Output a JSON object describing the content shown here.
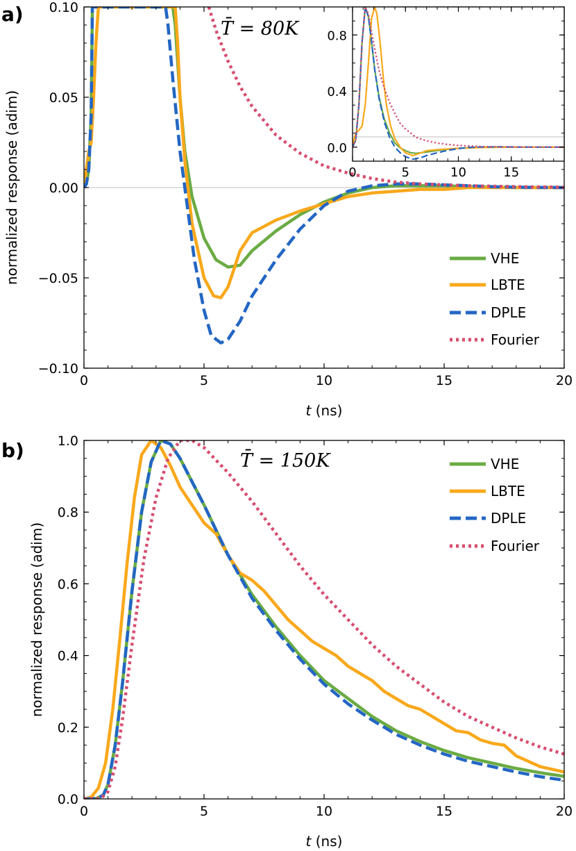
{
  "colors": {
    "VHE": "#6aab43",
    "LBTE": "#f9a81b",
    "DPLE": "#2366c4",
    "Fourier": "#d64d6f"
  },
  "chart_data": [
    {
      "panel": "a)",
      "type": "line",
      "annotation": "T̄ = 80K",
      "xlabel": "t (ns)",
      "ylabel": "normalized response (adim)",
      "xlim": [
        0,
        20
      ],
      "ylim": [
        -0.1,
        0.1
      ],
      "xticks": [
        "0",
        "5",
        "10",
        "15",
        "20"
      ],
      "yticks": [
        "−0.10",
        "−0.05",
        "0.00",
        "0.05",
        "0.10"
      ],
      "legend": [
        "VHE",
        "LBTE",
        "DPLE",
        "Fourier"
      ],
      "series": [
        {
          "name": "VHE",
          "x": [
            0,
            0.1,
            0.2,
            0.3,
            0.35,
            3.7,
            3.8,
            4,
            4.2,
            4.5,
            5,
            5.5,
            6,
            6.5,
            7,
            8,
            9,
            10,
            11,
            12,
            13,
            14,
            15,
            16,
            18,
            20
          ],
          "y": [
            0,
            0.002,
            0.01,
            0.04,
            0.1,
            0.1,
            0.09,
            0.05,
            0.02,
            -0.005,
            -0.028,
            -0.04,
            -0.044,
            -0.043,
            -0.035,
            -0.024,
            -0.015,
            -0.008,
            -0.003,
            0,
            0.001,
            0.001,
            0.001,
            0.0005,
            0,
            0
          ]
        },
        {
          "name": "LBTE",
          "x": [
            0,
            0.1,
            0.2,
            0.3,
            0.4,
            0.5,
            0.6,
            3.8,
            3.9,
            4,
            4.2,
            4.5,
            5,
            5.4,
            5.7,
            6,
            6.5,
            7,
            8,
            9,
            10,
            11,
            12,
            13,
            14,
            15,
            16,
            18,
            20
          ],
          "y": [
            0,
            0.01,
            0.02,
            0.025,
            0.05,
            0.08,
            0.1,
            0.1,
            0.08,
            0.05,
            0.015,
            -0.02,
            -0.05,
            -0.06,
            -0.061,
            -0.055,
            -0.035,
            -0.025,
            -0.018,
            -0.013,
            -0.009,
            -0.005,
            -0.003,
            -0.002,
            -0.001,
            -0.001,
            0,
            0,
            0
          ]
        },
        {
          "name": "DPLE",
          "x": [
            0,
            0.1,
            0.2,
            0.3,
            0.35,
            3.4,
            3.5,
            3.7,
            4,
            4.3,
            4.6,
            5,
            5.3,
            5.7,
            6,
            6.5,
            7,
            8,
            9,
            10,
            11,
            12,
            13,
            14,
            15,
            16,
            17,
            18,
            20
          ],
          "y": [
            0,
            0.002,
            0.01,
            0.04,
            0.1,
            0.1,
            0.09,
            0.06,
            0.02,
            -0.01,
            -0.04,
            -0.068,
            -0.082,
            -0.086,
            -0.084,
            -0.074,
            -0.06,
            -0.04,
            -0.023,
            -0.01,
            -0.002,
            0.001,
            0.002,
            0.002,
            0.0015,
            0.001,
            0.0005,
            0.0002,
            0
          ]
        },
        {
          "name": "Fourier",
          "x": [
            5.2,
            5.5,
            6,
            6.5,
            7,
            8,
            9,
            10,
            11,
            12,
            13,
            14,
            16,
            18,
            20
          ],
          "y": [
            0.1,
            0.087,
            0.07,
            0.056,
            0.045,
            0.029,
            0.019,
            0.012,
            0.008,
            0.005,
            0.003,
            0.002,
            0.001,
            0.0005,
            0.0002
          ]
        }
      ],
      "inset": {
        "xlim": [
          0,
          20
        ],
        "ylim": [
          -0.1,
          1.0
        ],
        "xticks": [
          "0",
          "5",
          "10",
          "15"
        ],
        "yticks": [
          "0.0",
          "0.4",
          "0.8"
        ],
        "series": [
          {
            "name": "VHE",
            "x": [
              0,
              0.3,
              0.6,
              0.9,
              1.2,
              1.5,
              1.8,
              2.1,
              2.5,
              3,
              3.5,
              4,
              4.5,
              5,
              5.5,
              6,
              7,
              8,
              9,
              10,
              12,
              14,
              16,
              18,
              20
            ],
            "y": [
              0,
              0.05,
              0.3,
              0.75,
              1.0,
              0.93,
              0.75,
              0.55,
              0.36,
              0.2,
              0.1,
              0.03,
              -0.005,
              -0.025,
              -0.04,
              -0.044,
              -0.035,
              -0.024,
              -0.015,
              -0.008,
              0,
              0.001,
              0,
              0,
              0
            ]
          },
          {
            "name": "LBTE",
            "x": [
              0,
              0.3,
              0.6,
              0.9,
              1.2,
              1.5,
              1.8,
              2.1,
              2.3,
              2.6,
              2.9,
              3.2,
              3.6,
              4,
              4.5,
              5,
              5.7,
              6.5,
              7,
              8,
              10,
              12,
              14,
              16,
              18,
              20
            ],
            "y": [
              0.02,
              0.1,
              0.12,
              0.15,
              0.3,
              0.6,
              0.92,
              1.0,
              0.95,
              0.75,
              0.5,
              0.3,
              0.15,
              0.06,
              0.0,
              -0.04,
              -0.061,
              -0.04,
              -0.025,
              -0.018,
              -0.009,
              -0.003,
              -0.001,
              0,
              0,
              0
            ]
          },
          {
            "name": "DPLE",
            "x": [
              0,
              0.3,
              0.6,
              0.9,
              1.2,
              1.5,
              1.8,
              2.1,
              2.5,
              3,
              3.5,
              4,
              4.5,
              5,
              5.7,
              6.5,
              7,
              8,
              9,
              10,
              11,
              12,
              14,
              16,
              18,
              20
            ],
            "y": [
              0,
              0.05,
              0.3,
              0.75,
              1.0,
              0.93,
              0.75,
              0.55,
              0.35,
              0.18,
              0.07,
              0.0,
              -0.04,
              -0.068,
              -0.086,
              -0.074,
              -0.06,
              -0.04,
              -0.023,
              -0.01,
              -0.002,
              0.001,
              0.002,
              0.001,
              0,
              0
            ]
          },
          {
            "name": "Fourier",
            "x": [
              0,
              0.3,
              0.6,
              0.9,
              1.2,
              1.5,
              1.8,
              2.1,
              2.5,
              3,
              3.5,
              4,
              4.5,
              5,
              6,
              7,
              8,
              9,
              10,
              12,
              14,
              16,
              18,
              20
            ],
            "y": [
              0,
              0.05,
              0.3,
              0.75,
              1.0,
              0.95,
              0.82,
              0.7,
              0.55,
              0.42,
              0.32,
              0.24,
              0.17,
              0.13,
              0.07,
              0.045,
              0.029,
              0.019,
              0.012,
              0.005,
              0.002,
              0.001,
              0.0005,
              0.0002
            ]
          }
        ]
      }
    },
    {
      "panel": "b)",
      "type": "line",
      "annotation": "T̄ = 150K",
      "xlabel": "t (ns)",
      "ylabel": "normalized response (adim)",
      "xlim": [
        0,
        20
      ],
      "ylim": [
        0,
        1.0
      ],
      "xticks": [
        "0",
        "5",
        "10",
        "15",
        "20"
      ],
      "yticks": [
        "0.0",
        "0.2",
        "0.4",
        "0.6",
        "0.8",
        "1.0"
      ],
      "legend": [
        "VHE",
        "LBTE",
        "DPLE",
        "Fourier"
      ],
      "series": [
        {
          "name": "VHE",
          "x": [
            0,
            0.5,
            0.8,
            1,
            1.3,
            1.6,
            2,
            2.4,
            2.8,
            3.2,
            3.6,
            4,
            5,
            6,
            7,
            8,
            9,
            10,
            11,
            12,
            13,
            14,
            15,
            16,
            17,
            18,
            19,
            20
          ],
          "y": [
            0,
            0.001,
            0.01,
            0.04,
            0.15,
            0.32,
            0.58,
            0.8,
            0.94,
            1.0,
            0.99,
            0.95,
            0.82,
            0.68,
            0.57,
            0.48,
            0.4,
            0.33,
            0.28,
            0.23,
            0.19,
            0.16,
            0.135,
            0.115,
            0.1,
            0.085,
            0.073,
            0.063
          ]
        },
        {
          "name": "LBTE",
          "x": [
            0,
            0.3,
            0.6,
            0.9,
            1.2,
            1.5,
            1.8,
            2.1,
            2.4,
            2.8,
            3.2,
            3.6,
            4,
            4.5,
            5,
            5.5,
            6,
            6.5,
            7,
            7.5,
            8,
            8.5,
            9,
            9.5,
            10,
            10.5,
            11,
            11.5,
            12,
            12.5,
            13,
            13.5,
            14,
            14.5,
            15,
            15.5,
            16,
            16.5,
            17,
            17.5,
            18,
            19,
            20
          ],
          "y": [
            0,
            0.005,
            0.03,
            0.1,
            0.25,
            0.45,
            0.66,
            0.84,
            0.96,
            1.0,
            0.98,
            0.93,
            0.87,
            0.82,
            0.77,
            0.74,
            0.68,
            0.63,
            0.61,
            0.58,
            0.54,
            0.5,
            0.47,
            0.44,
            0.42,
            0.4,
            0.37,
            0.35,
            0.33,
            0.3,
            0.28,
            0.26,
            0.25,
            0.23,
            0.21,
            0.19,
            0.185,
            0.165,
            0.155,
            0.15,
            0.12,
            0.09,
            0.075
          ]
        },
        {
          "name": "DPLE",
          "x": [
            0,
            0.5,
            0.8,
            1,
            1.3,
            1.6,
            2,
            2.4,
            2.8,
            3.2,
            3.6,
            4,
            5,
            6,
            7,
            8,
            9,
            10,
            11,
            12,
            13,
            14,
            15,
            16,
            17,
            18,
            19,
            20
          ],
          "y": [
            0,
            0.001,
            0.01,
            0.04,
            0.15,
            0.32,
            0.58,
            0.8,
            0.94,
            1.0,
            0.99,
            0.95,
            0.82,
            0.68,
            0.56,
            0.47,
            0.39,
            0.32,
            0.265,
            0.22,
            0.18,
            0.15,
            0.125,
            0.105,
            0.09,
            0.075,
            0.062,
            0.052
          ]
        },
        {
          "name": "Fourier",
          "x": [
            0,
            0.7,
            1,
            1.3,
            1.6,
            2,
            2.5,
            3,
            3.5,
            4,
            4.5,
            5,
            6,
            7,
            8,
            9,
            10,
            11,
            12,
            13,
            14,
            15,
            16,
            17,
            18,
            19,
            20
          ],
          "y": [
            0,
            0.001,
            0.02,
            0.09,
            0.22,
            0.43,
            0.67,
            0.84,
            0.95,
            1.0,
            1.0,
            0.98,
            0.91,
            0.83,
            0.74,
            0.65,
            0.57,
            0.5,
            0.43,
            0.37,
            0.32,
            0.27,
            0.23,
            0.2,
            0.17,
            0.145,
            0.125
          ]
        }
      ]
    }
  ]
}
